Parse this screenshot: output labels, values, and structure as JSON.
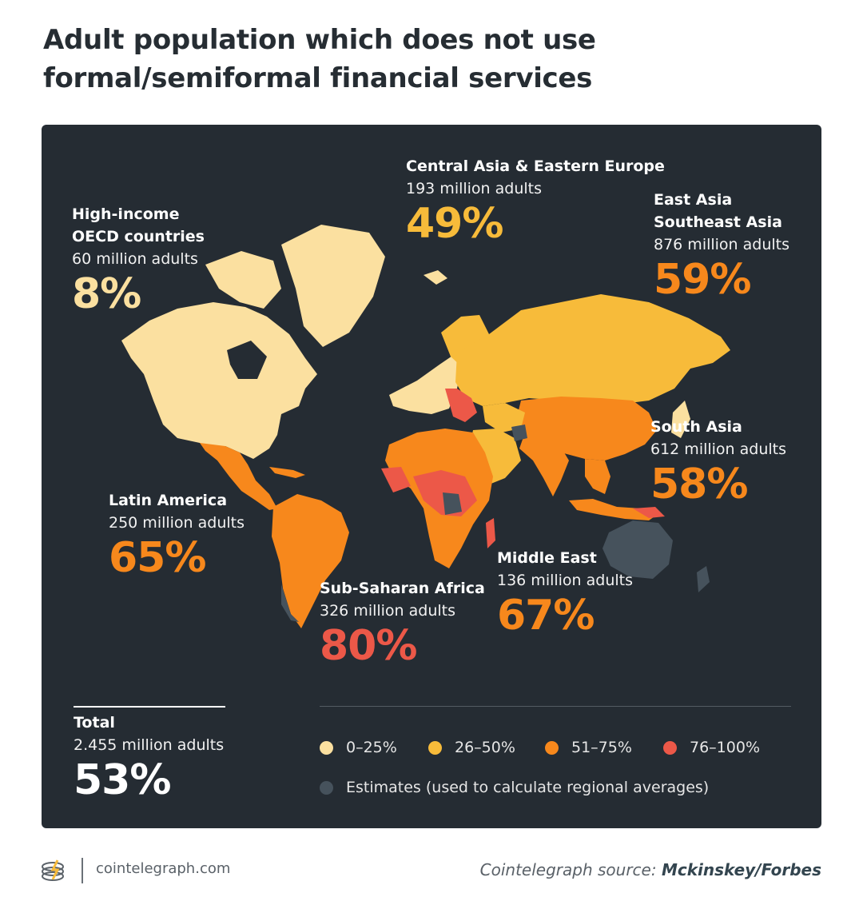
{
  "title": {
    "line1": "Adult population which does not use",
    "line2": "formal/semiformal financial services"
  },
  "colors": {
    "panel": "#252c33",
    "band_0_25": "#fbe0a0",
    "band_26_50": "#f7bb3a",
    "band_51_75": "#f7881c",
    "band_76_100": "#ec5848",
    "estimates": "#46525c"
  },
  "regions": [
    {
      "name": "High-income\nOECD countries",
      "adults": "60 million adults",
      "percent": "8%",
      "color": "#fbe0a0"
    },
    {
      "name": "Central Asia & Eastern Europe",
      "adults": "193 million adults",
      "percent": "49%",
      "color": "#f7bb3a"
    },
    {
      "name": "East Asia\nSoutheast Asia",
      "adults": "876 million adults",
      "percent": "59%",
      "color": "#f7881c"
    },
    {
      "name": "South Asia",
      "adults": "612 million adults",
      "percent": "58%",
      "color": "#f7881c"
    },
    {
      "name": "Latin America",
      "adults": "250 million adults",
      "percent": "65%",
      "color": "#f7881c"
    },
    {
      "name": "Middle East",
      "adults": "136 million adults",
      "percent": "67%",
      "color": "#f7881c"
    },
    {
      "name": "Sub-Saharan Africa",
      "adults": "326 million adults",
      "percent": "80%",
      "color": "#ec5848"
    }
  ],
  "total": {
    "name": "Total",
    "adults": "2.455 million adults",
    "percent": "53%"
  },
  "legend": [
    {
      "label": "0–25%",
      "color": "#fbe0a0"
    },
    {
      "label": "26–50%",
      "color": "#f7bb3a"
    },
    {
      "label": "51–75%",
      "color": "#f7881c"
    },
    {
      "label": "76–100%",
      "color": "#ec5848"
    },
    {
      "label": "Estimates (used to calculate regional averages)",
      "color": "#46525c"
    }
  ],
  "footer": {
    "site": "cointelegraph.com",
    "source_prefix": "Cointelegraph source: ",
    "source_name": "Mckinskey/Forbes"
  }
}
